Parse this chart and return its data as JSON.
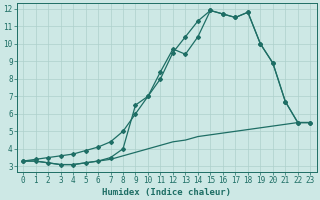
{
  "xlabel": "Humidex (Indice chaleur)",
  "xlim": [
    -0.5,
    23.5
  ],
  "ylim": [
    2.7,
    12.3
  ],
  "yticks": [
    3,
    4,
    5,
    6,
    7,
    8,
    9,
    10,
    11,
    12
  ],
  "xticks": [
    0,
    1,
    2,
    3,
    4,
    5,
    6,
    7,
    8,
    9,
    10,
    11,
    12,
    13,
    14,
    15,
    16,
    17,
    18,
    19,
    20,
    21,
    22,
    23
  ],
  "bg_color": "#cde8e5",
  "line_color": "#1e6e65",
  "grid_color": "#aed0cc",
  "line1_x": [
    0,
    1,
    2,
    3,
    4,
    5,
    6,
    7,
    8,
    9,
    10,
    11,
    12,
    13,
    14,
    15,
    16,
    17,
    18,
    19,
    20,
    21,
    22,
    23
  ],
  "line1_y": [
    3.3,
    3.3,
    3.2,
    3.1,
    3.1,
    3.2,
    3.3,
    3.4,
    3.6,
    3.8,
    4.0,
    4.2,
    4.4,
    4.5,
    4.7,
    4.8,
    4.9,
    5.0,
    5.1,
    5.2,
    5.3,
    5.4,
    5.5,
    5.5
  ],
  "line2_x": [
    0,
    1,
    2,
    3,
    4,
    5,
    6,
    7,
    8,
    9,
    10,
    11,
    12,
    13,
    14,
    15,
    16,
    17,
    18,
    19,
    20,
    21,
    22,
    23
  ],
  "line2_y": [
    3.3,
    3.3,
    3.2,
    3.1,
    3.1,
    3.2,
    3.3,
    3.5,
    4.0,
    6.5,
    7.0,
    8.4,
    9.7,
    9.4,
    10.4,
    11.9,
    11.7,
    11.5,
    11.8,
    10.0,
    8.9,
    6.7,
    5.5,
    5.5
  ],
  "line3_x": [
    0,
    1,
    2,
    3,
    4,
    5,
    6,
    7,
    8,
    9,
    10,
    11,
    12,
    13,
    14,
    15,
    16,
    17,
    18,
    19,
    20,
    21,
    22,
    23
  ],
  "line3_y": [
    3.3,
    3.4,
    3.5,
    3.6,
    3.7,
    3.9,
    4.1,
    4.4,
    5.0,
    6.0,
    7.0,
    8.0,
    9.5,
    10.4,
    11.3,
    11.9,
    11.7,
    11.5,
    11.8,
    10.0,
    8.9,
    6.7,
    5.5,
    5.5
  ]
}
